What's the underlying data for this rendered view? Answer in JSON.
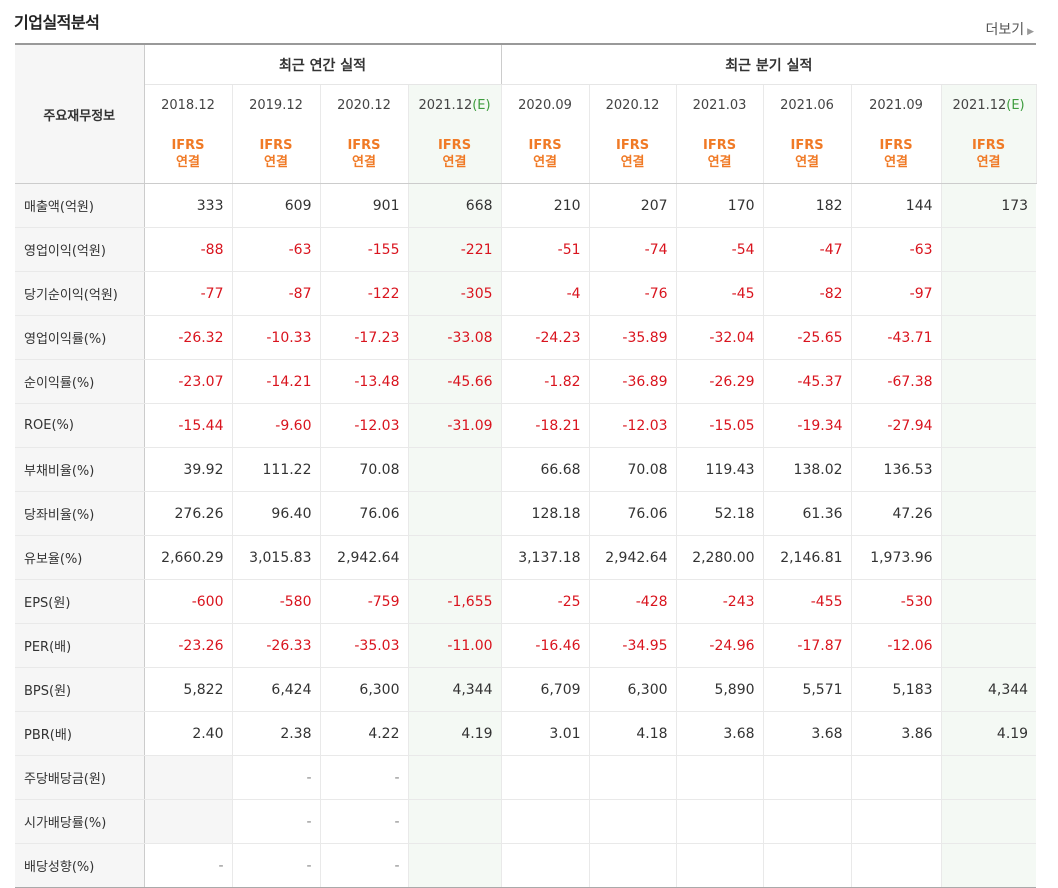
{
  "section_title": "기업실적분석",
  "more_label": "더보기",
  "header": {
    "row_label": "주요재무정보",
    "annual_group": "최근 연간 실적",
    "quarter_group": "최근 분기 실적",
    "periods": [
      "2018.12",
      "2019.12",
      "2020.12",
      "2021.12",
      "2020.09",
      "2020.12",
      "2021.03",
      "2021.06",
      "2021.09",
      "2021.12"
    ],
    "estimate_mark": "(E)",
    "ifrs_top": "IFRS",
    "ifrs_bottom": "연결"
  },
  "rows": [
    {
      "label": "매출액(억원)",
      "values": [
        "333",
        "609",
        "901",
        "668",
        "210",
        "207",
        "170",
        "182",
        "144",
        "173"
      ]
    },
    {
      "label": "영업이익(억원)",
      "values": [
        "-88",
        "-63",
        "-155",
        "-221",
        "-51",
        "-74",
        "-54",
        "-47",
        "-63",
        ""
      ]
    },
    {
      "label": "당기순이익(억원)",
      "values": [
        "-77",
        "-87",
        "-122",
        "-305",
        "-4",
        "-76",
        "-45",
        "-82",
        "-97",
        ""
      ]
    },
    {
      "label": "영업이익률(%)",
      "values": [
        "-26.32",
        "-10.33",
        "-17.23",
        "-33.08",
        "-24.23",
        "-35.89",
        "-32.04",
        "-25.65",
        "-43.71",
        ""
      ]
    },
    {
      "label": "순이익률(%)",
      "values": [
        "-23.07",
        "-14.21",
        "-13.48",
        "-45.66",
        "-1.82",
        "-36.89",
        "-26.29",
        "-45.37",
        "-67.38",
        ""
      ]
    },
    {
      "label": "ROE(%)",
      "values": [
        "-15.44",
        "-9.60",
        "-12.03",
        "-31.09",
        "-18.21",
        "-12.03",
        "-15.05",
        "-19.34",
        "-27.94",
        ""
      ]
    },
    {
      "label": "부채비율(%)",
      "values": [
        "39.92",
        "111.22",
        "70.08",
        "",
        "66.68",
        "70.08",
        "119.43",
        "138.02",
        "136.53",
        ""
      ]
    },
    {
      "label": "당좌비율(%)",
      "values": [
        "276.26",
        "96.40",
        "76.06",
        "",
        "128.18",
        "76.06",
        "52.18",
        "61.36",
        "47.26",
        ""
      ]
    },
    {
      "label": "유보율(%)",
      "values": [
        "2,660.29",
        "3,015.83",
        "2,942.64",
        "",
        "3,137.18",
        "2,942.64",
        "2,280.00",
        "2,146.81",
        "1,973.96",
        ""
      ]
    },
    {
      "label": "EPS(원)",
      "values": [
        "-600",
        "-580",
        "-759",
        "-1,655",
        "-25",
        "-428",
        "-243",
        "-455",
        "-530",
        ""
      ]
    },
    {
      "label": "PER(배)",
      "values": [
        "-23.26",
        "-26.33",
        "-35.03",
        "-11.00",
        "-16.46",
        "-34.95",
        "-24.96",
        "-17.87",
        "-12.06",
        ""
      ]
    },
    {
      "label": "BPS(원)",
      "values": [
        "5,822",
        "6,424",
        "6,300",
        "4,344",
        "6,709",
        "6,300",
        "5,890",
        "5,571",
        "5,183",
        "4,344"
      ]
    },
    {
      "label": "PBR(배)",
      "values": [
        "2.40",
        "2.38",
        "4.22",
        "4.19",
        "3.01",
        "4.18",
        "3.68",
        "3.68",
        "3.86",
        "4.19"
      ]
    },
    {
      "label": "주당배당금(원)",
      "values": [
        "",
        "-",
        "-",
        "",
        "",
        "",
        "",
        "",
        "",
        ""
      ]
    },
    {
      "label": "시가배당률(%)",
      "values": [
        "",
        "-",
        "-",
        "",
        "",
        "",
        "",
        "",
        "",
        ""
      ]
    },
    {
      "label": "배당성향(%)",
      "values": [
        "-",
        "-",
        "-",
        "",
        "",
        "",
        "",
        "",
        "",
        ""
      ]
    }
  ],
  "colors": {
    "negative": "#d9141e",
    "ifrs": "#f07a26",
    "estimate_mark": "#3e9c3e",
    "estimate_bg": "#f4f9f4",
    "label_bg": "#f6f6f6"
  }
}
